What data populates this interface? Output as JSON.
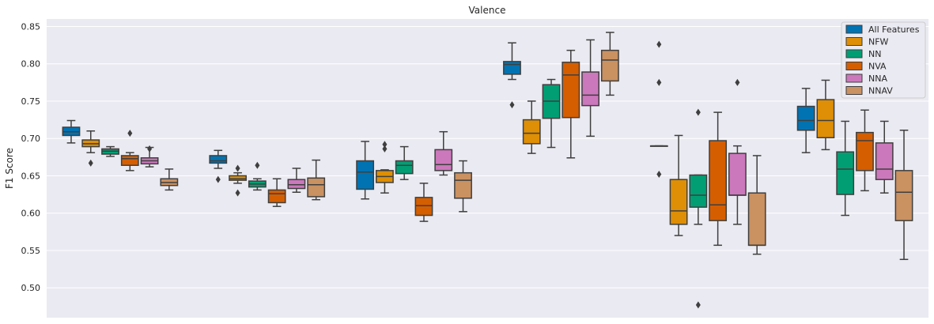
{
  "chart_data": {
    "type": "box",
    "title": "Valence",
    "xlabel": "",
    "ylabel": "F1 Score",
    "ylim": [
      0.46,
      0.86
    ],
    "yticks": [
      0.5,
      0.55,
      0.6,
      0.65,
      0.7,
      0.75,
      0.8,
      0.85
    ],
    "ytick_labels": [
      "0.50",
      "0.55",
      "0.60",
      "0.65",
      "0.70",
      "0.75",
      "0.80",
      "0.85"
    ],
    "grid": true,
    "legend_position": "top-right",
    "groups": 6,
    "series": [
      {
        "name": "All Features",
        "color": "#0173b2",
        "boxes": [
          {
            "min": 0.694,
            "q1": 0.704,
            "median": 0.709,
            "q3": 0.715,
            "max": 0.724,
            "outliers": []
          },
          {
            "min": 0.66,
            "q1": 0.667,
            "median": 0.67,
            "q3": 0.677,
            "max": 0.684,
            "outliers": [
              0.645
            ]
          },
          {
            "min": 0.619,
            "q1": 0.632,
            "median": 0.655,
            "q3": 0.67,
            "max": 0.696,
            "outliers": []
          },
          {
            "min": 0.779,
            "q1": 0.786,
            "median": 0.799,
            "q3": 0.803,
            "max": 0.828,
            "outliers": [
              0.745
            ]
          },
          {
            "min": 0.69,
            "q1": 0.69,
            "median": 0.69,
            "q3": 0.69,
            "max": 0.69,
            "outliers": [
              0.826,
              0.775,
              0.652
            ]
          },
          {
            "min": 0.681,
            "q1": 0.711,
            "median": 0.724,
            "q3": 0.743,
            "max": 0.767,
            "outliers": []
          }
        ]
      },
      {
        "name": "NFW",
        "color": "#de8f05",
        "boxes": [
          {
            "min": 0.681,
            "q1": 0.689,
            "median": 0.693,
            "q3": 0.698,
            "max": 0.71,
            "outliers": [
              0.667
            ]
          },
          {
            "min": 0.64,
            "q1": 0.644,
            "median": 0.646,
            "q3": 0.65,
            "max": 0.654,
            "outliers": [
              0.66,
              0.627
            ]
          },
          {
            "min": 0.627,
            "q1": 0.641,
            "median": 0.649,
            "q3": 0.657,
            "max": 0.658,
            "outliers": [
              0.686,
              0.692
            ]
          },
          {
            "min": 0.68,
            "q1": 0.693,
            "median": 0.707,
            "q3": 0.725,
            "max": 0.75,
            "outliers": []
          },
          {
            "min": 0.57,
            "q1": 0.585,
            "median": 0.603,
            "q3": 0.645,
            "max": 0.704,
            "outliers": []
          },
          {
            "min": 0.685,
            "q1": 0.701,
            "median": 0.724,
            "q3": 0.752,
            "max": 0.778,
            "outliers": []
          }
        ]
      },
      {
        "name": "NN",
        "color": "#029e73",
        "boxes": [
          {
            "min": 0.676,
            "q1": 0.679,
            "median": 0.683,
            "q3": 0.686,
            "max": 0.689,
            "outliers": []
          },
          {
            "min": 0.631,
            "q1": 0.635,
            "median": 0.639,
            "q3": 0.643,
            "max": 0.646,
            "outliers": [
              0.664
            ]
          },
          {
            "min": 0.645,
            "q1": 0.653,
            "median": 0.664,
            "q3": 0.67,
            "max": 0.689,
            "outliers": []
          },
          {
            "min": 0.688,
            "q1": 0.727,
            "median": 0.75,
            "q3": 0.772,
            "max": 0.779,
            "outliers": []
          },
          {
            "min": 0.585,
            "q1": 0.608,
            "median": 0.624,
            "q3": 0.651,
            "max": 0.651,
            "outliers": [
              0.735,
              0.477
            ]
          },
          {
            "min": 0.597,
            "q1": 0.625,
            "median": 0.659,
            "q3": 0.682,
            "max": 0.723,
            "outliers": []
          }
        ]
      },
      {
        "name": "NVA",
        "color": "#d55e00",
        "boxes": [
          {
            "min": 0.657,
            "q1": 0.664,
            "median": 0.673,
            "q3": 0.677,
            "max": 0.681,
            "outliers": [
              0.707
            ]
          },
          {
            "min": 0.609,
            "q1": 0.614,
            "median": 0.626,
            "q3": 0.631,
            "max": 0.646,
            "outliers": []
          },
          {
            "min": 0.589,
            "q1": 0.597,
            "median": 0.61,
            "q3": 0.621,
            "max": 0.64,
            "outliers": []
          },
          {
            "min": 0.674,
            "q1": 0.728,
            "median": 0.785,
            "q3": 0.802,
            "max": 0.818,
            "outliers": []
          },
          {
            "min": 0.557,
            "q1": 0.59,
            "median": 0.611,
            "q3": 0.697,
            "max": 0.735,
            "outliers": []
          },
          {
            "min": 0.63,
            "q1": 0.657,
            "median": 0.697,
            "q3": 0.708,
            "max": 0.738,
            "outliers": []
          }
        ]
      },
      {
        "name": "NNA",
        "color": "#cc78bc",
        "boxes": [
          {
            "min": 0.662,
            "q1": 0.666,
            "median": 0.67,
            "q3": 0.674,
            "max": 0.688,
            "outliers": [
              0.686
            ]
          },
          {
            "min": 0.628,
            "q1": 0.633,
            "median": 0.638,
            "q3": 0.645,
            "max": 0.66,
            "outliers": []
          },
          {
            "min": 0.651,
            "q1": 0.657,
            "median": 0.665,
            "q3": 0.685,
            "max": 0.709,
            "outliers": []
          },
          {
            "min": 0.703,
            "q1": 0.744,
            "median": 0.758,
            "q3": 0.789,
            "max": 0.832,
            "outliers": []
          },
          {
            "min": 0.585,
            "q1": 0.624,
            "median": 0.624,
            "q3": 0.68,
            "max": 0.69,
            "outliers": [
              0.775
            ]
          },
          {
            "min": 0.627,
            "q1": 0.645,
            "median": 0.659,
            "q3": 0.694,
            "max": 0.723,
            "outliers": []
          }
        ]
      },
      {
        "name": "NNAV",
        "color": "#ca9161",
        "boxes": [
          {
            "min": 0.631,
            "q1": 0.637,
            "median": 0.641,
            "q3": 0.646,
            "max": 0.659,
            "outliers": []
          },
          {
            "min": 0.618,
            "q1": 0.622,
            "median": 0.638,
            "q3": 0.647,
            "max": 0.671,
            "outliers": []
          },
          {
            "min": 0.602,
            "q1": 0.62,
            "median": 0.644,
            "q3": 0.654,
            "max": 0.67,
            "outliers": []
          },
          {
            "min": 0.758,
            "q1": 0.777,
            "median": 0.805,
            "q3": 0.818,
            "max": 0.842,
            "outliers": []
          },
          {
            "min": 0.545,
            "q1": 0.557,
            "median": 0.557,
            "q3": 0.627,
            "max": 0.677,
            "outliers": []
          },
          {
            "min": 0.538,
            "q1": 0.59,
            "median": 0.628,
            "q3": 0.657,
            "max": 0.711,
            "outliers": []
          }
        ]
      }
    ]
  }
}
